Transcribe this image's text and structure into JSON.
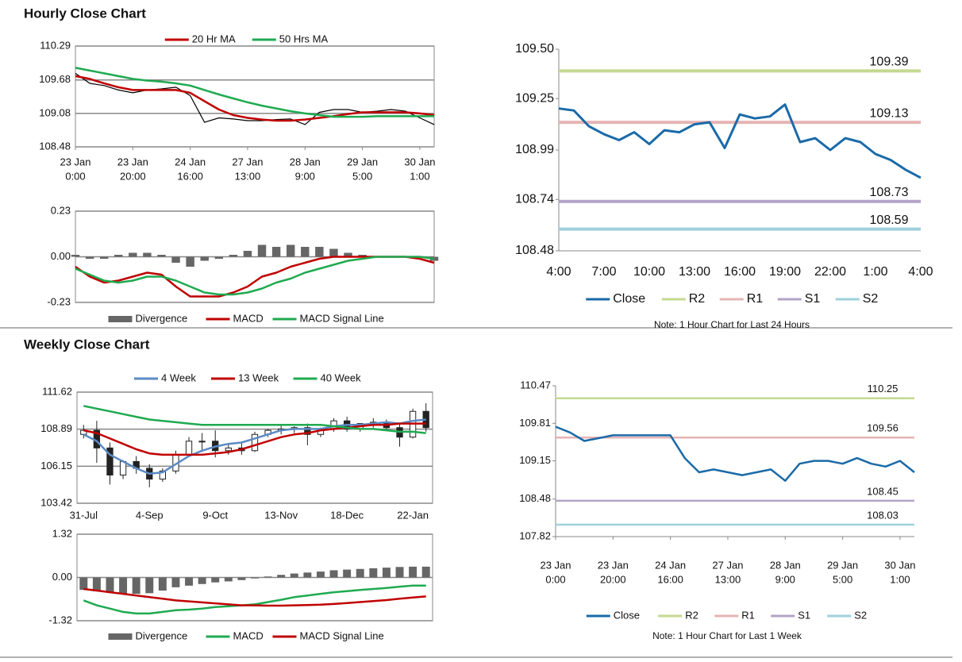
{
  "sections": [
    {
      "title": "Hourly Close Chart"
    },
    {
      "title": "Weekly Close Chart"
    }
  ],
  "chart_data": [
    {
      "type": "line",
      "x": [
        0,
        5,
        10,
        15,
        20,
        25,
        30,
        35,
        40,
        45,
        50,
        55,
        60,
        65,
        70,
        75,
        80,
        85,
        90,
        95,
        100,
        105,
        110,
        115,
        120,
        125
      ],
      "xlim": [
        0,
        125
      ],
      "xticks": [
        {
          "value": 0,
          "label": [
            "23 Jan",
            "0:00"
          ]
        },
        {
          "value": 20,
          "label": [
            "23 Jan",
            "20:00"
          ]
        },
        {
          "value": 40,
          "label": [
            "24 Jan",
            "16:00"
          ]
        },
        {
          "value": 60,
          "label": [
            "27 Jan",
            "13:00"
          ]
        },
        {
          "value": 80,
          "label": [
            "28 Jan",
            "9:00"
          ]
        },
        {
          "value": 100,
          "label": [
            "29 Jan",
            "5:00"
          ]
        },
        {
          "value": 120,
          "label": [
            "30 Jan",
            "1:00"
          ]
        }
      ],
      "ylim": [
        108.48,
        110.29
      ],
      "yticks": [
        108.48,
        109.08,
        109.68,
        110.29
      ],
      "grid": true,
      "legend": "top",
      "series": [
        {
          "color": "#000000",
          "values": [
            109.8,
            109.62,
            109.58,
            109.5,
            109.45,
            109.5,
            109.52,
            109.55,
            109.4,
            108.92,
            109.0,
            108.98,
            108.95,
            108.95,
            108.97,
            108.98,
            108.88,
            109.1,
            109.15,
            109.15,
            109.1,
            109.12,
            109.15,
            109.12,
            109.0,
            108.88
          ]
        },
        {
          "name": "20 Hr MA",
          "color": "#c00000",
          "values": [
            109.75,
            109.7,
            109.62,
            109.55,
            109.5,
            109.5,
            109.5,
            109.5,
            109.45,
            109.3,
            109.15,
            109.05,
            109.0,
            108.97,
            108.95,
            108.95,
            108.97,
            109.0,
            109.03,
            109.07,
            109.1,
            109.1,
            109.1,
            109.1,
            109.08,
            109.05
          ]
        },
        {
          "name": "50 Hrs MA",
          "color": "#1faa50",
          "values": [
            109.9,
            109.85,
            109.8,
            109.75,
            109.7,
            109.67,
            109.65,
            109.62,
            109.58,
            109.5,
            109.42,
            109.35,
            109.28,
            109.22,
            109.17,
            109.12,
            109.08,
            109.05,
            109.02,
            109.02,
            109.02,
            109.03,
            109.03,
            109.03,
            109.03,
            109.03
          ]
        }
      ]
    },
    {
      "type": "line",
      "x": [
        0,
        5,
        10,
        15,
        20,
        25,
        30,
        35,
        40,
        45,
        50,
        55,
        60,
        65,
        70,
        75,
        80,
        85,
        90,
        95,
        100,
        105,
        110,
        115,
        120,
        125
      ],
      "xlim": [
        0,
        125
      ],
      "ylim": [
        -0.23,
        0.23
      ],
      "yticks": [
        -0.23,
        {
          "value": 0,
          "label": "0.00"
        },
        0.23
      ],
      "grid": true,
      "legend": "bottom",
      "series": [
        {
          "name": "Divergence",
          "style": "bar",
          "color": "#666666",
          "values": [
            0.01,
            -0.01,
            -0.01,
            0.01,
            0.02,
            0.02,
            0.01,
            -0.03,
            -0.05,
            -0.02,
            -0.01,
            0.01,
            0.03,
            0.06,
            0.05,
            0.06,
            0.05,
            0.05,
            0.04,
            0.02,
            0.01,
            0,
            0,
            0,
            0,
            -0.02
          ]
        },
        {
          "name": "MACD",
          "color": "#c00000",
          "values": [
            -0.05,
            -0.1,
            -0.13,
            -0.12,
            -0.1,
            -0.08,
            -0.09,
            -0.15,
            -0.2,
            -0.2,
            -0.2,
            -0.18,
            -0.15,
            -0.1,
            -0.08,
            -0.05,
            -0.03,
            -0.01,
            0,
            0,
            0,
            0,
            0,
            0,
            -0.01,
            -0.03
          ]
        },
        {
          "name": "MACD Signal Line",
          "color": "#1faa50",
          "values": [
            -0.06,
            -0.09,
            -0.12,
            -0.13,
            -0.12,
            -0.1,
            -0.1,
            -0.12,
            -0.15,
            -0.18,
            -0.19,
            -0.19,
            -0.18,
            -0.16,
            -0.13,
            -0.11,
            -0.08,
            -0.06,
            -0.04,
            -0.02,
            -0.01,
            0,
            0,
            0,
            0,
            -0.01
          ]
        }
      ]
    },
    {
      "type": "line",
      "categories": [
        "4:00",
        null,
        null,
        "7:00",
        null,
        null,
        "10:00",
        null,
        null,
        "13:00",
        null,
        null,
        "16:00",
        null,
        null,
        "19:00",
        null,
        null,
        "22:00",
        null,
        null,
        "1:00",
        null,
        null,
        "4:00"
      ],
      "ylim": [
        108.48,
        109.5
      ],
      "yticks": [
        108.48,
        108.74,
        108.99,
        109.25,
        {
          "value": 109.5,
          "label": "109.50"
        }
      ],
      "legend": "bottom",
      "series": [
        {
          "name": "Close",
          "color": "#1a6aa8",
          "values": [
            109.2,
            109.19,
            109.11,
            109.07,
            109.04,
            109.08,
            109.02,
            109.09,
            109.08,
            109.12,
            109.13,
            109.0,
            109.17,
            109.15,
            109.16,
            109.22,
            109.03,
            109.05,
            108.99,
            109.05,
            109.03,
            108.97,
            108.94,
            108.89,
            108.85
          ]
        }
      ],
      "levels": [
        {
          "name": "R2",
          "color": "#c4d98f",
          "value": 109.39
        },
        {
          "name": "R1",
          "color": "#e6b4b4",
          "value": 109.13
        },
        {
          "name": "S1",
          "color": "#b3a3c8",
          "value": 108.73
        },
        {
          "name": "S2",
          "color": "#9fd0dc",
          "value": 108.59
        }
      ],
      "note": "Note: 1 Hour Chart for Last 24 Hours"
    },
    {
      "type": "candlestick",
      "categories": [
        "31-Jul",
        null,
        null,
        null,
        null,
        "4-Sep",
        null,
        null,
        null,
        null,
        "9-Oct",
        null,
        null,
        null,
        null,
        "13-Nov",
        null,
        null,
        null,
        null,
        "18-Dec",
        null,
        null,
        null,
        null,
        "22-Jan",
        null
      ],
      "ylim": [
        103.42,
        111.62
      ],
      "yticks": [
        103.42,
        106.15,
        108.89,
        111.62
      ],
      "grid": true,
      "legend": "top",
      "ohlc": {
        "open": [
          108.5,
          108.8,
          107.5,
          105.5,
          106.5,
          106.0,
          105.2,
          105.8,
          107.0,
          108.0,
          108.0,
          107.3,
          107.5,
          107.3,
          108.5,
          108.8,
          108.9,
          109.0,
          108.5,
          108.9,
          109.5,
          108.9,
          109.3,
          109.4,
          109.0,
          108.3,
          110.2
        ],
        "high": [
          109.2,
          109.5,
          107.9,
          106.6,
          106.9,
          106.3,
          106.0,
          107.3,
          108.3,
          108.6,
          108.8,
          107.8,
          107.9,
          108.7,
          108.9,
          109.2,
          109.1,
          109.3,
          109.0,
          109.7,
          109.8,
          109.3,
          109.7,
          109.6,
          109.3,
          110.4,
          110.8
        ],
        "low": [
          108.2,
          106.4,
          104.8,
          105.2,
          105.6,
          104.6,
          105.0,
          105.6,
          106.9,
          107.2,
          106.8,
          107.0,
          107.0,
          107.2,
          108.3,
          108.5,
          108.6,
          107.7,
          108.3,
          108.7,
          108.7,
          108.7,
          109.0,
          108.8,
          107.6,
          108.2,
          108.7
        ],
        "close": [
          108.8,
          107.5,
          105.5,
          106.5,
          106.0,
          105.2,
          105.8,
          107.0,
          108.0,
          108.0,
          107.3,
          107.5,
          107.3,
          108.5,
          108.8,
          108.9,
          109.0,
          108.5,
          108.9,
          109.5,
          108.9,
          109.3,
          109.4,
          109.0,
          108.3,
          110.2,
          109.0
        ]
      },
      "series": [
        {
          "name": "4 Week",
          "color": "#5b8ac4",
          "values": [
            108.5,
            108.0,
            107.0,
            106.5,
            106.0,
            105.6,
            105.7,
            106.3,
            106.9,
            107.3,
            107.6,
            107.8,
            107.9,
            108.2,
            108.5,
            108.8,
            108.9,
            108.9,
            108.9,
            109.1,
            109.2,
            109.2,
            109.3,
            109.4,
            109.3,
            109.5,
            109.6
          ]
        },
        {
          "name": "13 Week",
          "color": "#c00000",
          "values": [
            108.8,
            108.6,
            108.2,
            107.8,
            107.4,
            107.1,
            107.0,
            107.0,
            107.0,
            107.0,
            107.1,
            107.2,
            107.4,
            107.7,
            108.0,
            108.3,
            108.5,
            108.6,
            108.8,
            108.9,
            109.0,
            109.1,
            109.2,
            109.2,
            109.3,
            109.3,
            109.3
          ]
        },
        {
          "name": "40 Week",
          "color": "#1faa50",
          "values": [
            110.6,
            110.4,
            110.2,
            110.0,
            109.8,
            109.6,
            109.5,
            109.4,
            109.3,
            109.2,
            109.2,
            109.2,
            109.2,
            109.2,
            109.2,
            109.2,
            109.2,
            109.2,
            109.2,
            109.1,
            109.0,
            108.9,
            108.9,
            108.8,
            108.7,
            108.7,
            108.6
          ]
        }
      ]
    },
    {
      "type": "line",
      "ylim": [
        -1.32,
        1.32
      ],
      "yticks": [
        -1.32,
        {
          "value": 0,
          "label": "0.00"
        },
        1.32
      ],
      "grid": true,
      "legend": "bottom",
      "series": [
        {
          "name": "Divergence",
          "style": "bar",
          "color": "#666666",
          "values": [
            -0.38,
            -0.42,
            -0.45,
            -0.5,
            -0.5,
            -0.48,
            -0.4,
            -0.3,
            -0.25,
            -0.2,
            -0.15,
            -0.12,
            -0.08,
            -0.03,
            0.03,
            0.08,
            0.12,
            0.15,
            0.18,
            0.22,
            0.24,
            0.26,
            0.28,
            0.3,
            0.32,
            0.33,
            0.33
          ]
        },
        {
          "name": "MACD",
          "color": "#1faa50",
          "values": [
            -0.7,
            -0.85,
            -0.95,
            -1.05,
            -1.1,
            -1.1,
            -1.05,
            -1.0,
            -0.98,
            -0.95,
            -0.9,
            -0.88,
            -0.85,
            -0.82,
            -0.75,
            -0.68,
            -0.6,
            -0.55,
            -0.5,
            -0.45,
            -0.42,
            -0.38,
            -0.35,
            -0.32,
            -0.28,
            -0.25,
            -0.25
          ]
        },
        {
          "name": "MACD Signal Line",
          "color": "#c00000",
          "values": [
            -0.35,
            -0.4,
            -0.45,
            -0.5,
            -0.55,
            -0.6,
            -0.65,
            -0.7,
            -0.73,
            -0.76,
            -0.79,
            -0.82,
            -0.85,
            -0.85,
            -0.86,
            -0.86,
            -0.85,
            -0.84,
            -0.83,
            -0.81,
            -0.78,
            -0.75,
            -0.72,
            -0.69,
            -0.65,
            -0.61,
            -0.58
          ]
        }
      ]
    },
    {
      "type": "line",
      "x": [
        0,
        5,
        10,
        15,
        20,
        25,
        30,
        35,
        40,
        45,
        50,
        55,
        60,
        65,
        70,
        75,
        80,
        85,
        90,
        95,
        100,
        105,
        110,
        115,
        120,
        125
      ],
      "xlim": [
        0,
        125
      ],
      "xticks": [
        {
          "value": 0,
          "label": [
            "23 Jan",
            "0:00"
          ]
        },
        {
          "value": 20,
          "label": [
            "23 Jan",
            "20:00"
          ]
        },
        {
          "value": 40,
          "label": [
            "24 Jan",
            "16:00"
          ]
        },
        {
          "value": 60,
          "label": [
            "27 Jan",
            "13:00"
          ]
        },
        {
          "value": 80,
          "label": [
            "28 Jan",
            "9:00"
          ]
        },
        {
          "value": 100,
          "label": [
            "29 Jan",
            "5:00"
          ]
        },
        {
          "value": 120,
          "label": [
            "30 Jan",
            "1:00"
          ]
        }
      ],
      "ylim": [
        107.82,
        110.47
      ],
      "yticks": [
        107.82,
        108.48,
        109.15,
        109.81,
        110.47
      ],
      "legend": "bottom",
      "series": [
        {
          "name": "Close",
          "color": "#1a6aa8",
          "values": [
            109.75,
            109.65,
            109.5,
            109.55,
            109.6,
            109.6,
            109.6,
            109.6,
            109.6,
            109.2,
            108.95,
            109.0,
            108.95,
            108.9,
            108.95,
            109.0,
            108.8,
            109.1,
            109.15,
            109.15,
            109.1,
            109.2,
            109.1,
            109.05,
            109.15,
            108.95
          ]
        }
      ],
      "levels": [
        {
          "name": "R2",
          "color": "#c4d98f",
          "value": 110.25
        },
        {
          "name": "R1",
          "color": "#e6b4b4",
          "value": 109.56
        },
        {
          "name": "S1",
          "color": "#b3a3c8",
          "value": 108.45
        },
        {
          "name": "S2",
          "color": "#9fd0dc",
          "value": 108.03
        }
      ],
      "note": "Note: 1 Hour Chart for Last 1 Week"
    }
  ]
}
